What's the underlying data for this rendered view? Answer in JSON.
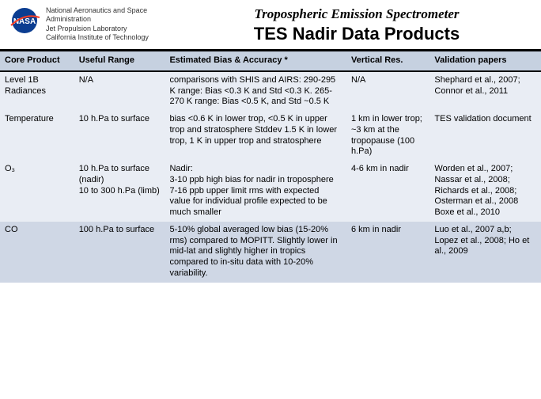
{
  "header": {
    "org_line1": "National Aeronautics and Space",
    "org_line2": "Administration",
    "org_line3": "Jet Propulsion Laboratory",
    "org_line4": "California Institute of Technology",
    "title_sub": "Tropospheric Emission Spectrometer",
    "title_main": "TES Nadir Data Products"
  },
  "table": {
    "columns": [
      "Core Product",
      "Useful Range",
      "Estimated Bias & Accuracy *",
      "Vertical Res.",
      "Validation papers"
    ],
    "rows": [
      {
        "product": "Level 1B Radiances",
        "range": "N/A",
        "bias": "comparisons with SHIS and AIRS: 290-295 K range: Bias <0.3 K and Std <0.3 K. 265-270 K range: Bias <0.5 K, and Std ~0.5 K",
        "vres": "N/A",
        "papers": "Shephard et al., 2007; Connor et al., 2011"
      },
      {
        "product": "Temperature",
        "range": "10 h.Pa to surface",
        "bias": "bias <0.6 K in lower trop, <0.5 K in upper trop and stratosphere Stddev 1.5 K in lower trop, 1 K in upper trop and stratosphere",
        "vres": "1 km in lower trop; ~3 km at the tropopause (100 h.Pa)",
        "papers": "TES validation document"
      },
      {
        "product": "O₃",
        "range": "10 h.Pa to surface (nadir)\n10 to 300 h.Pa (limb)",
        "bias": "Nadir:\n3-10 ppb high bias for nadir in troposphere\n7-16 ppb upper limit rms with expected value for individual profile expected to be much smaller",
        "vres": "4-6 km in nadir",
        "papers": "Worden et al., 2007; Nassar et al., 2008; Richards et al., 2008; Osterman et al., 2008\nBoxe et al., 2010"
      },
      {
        "product": "CO",
        "range": "100 h.Pa to surface",
        "bias": "5-10% global averaged low bias (15-20% rms) compared to MOPITT. Slightly lower in mid-lat and slightly higher in tropics compared to in-situ data with 10-20% variability.",
        "vres": "6 km in nadir",
        "papers": "Luo et al., 2007 a,b; Lopez et al., 2008; Ho et al., 2009"
      }
    ]
  },
  "colors": {
    "header_band": "#c6d1e0",
    "row_even": "#e9edf4",
    "row_odd": "#cfd7e5"
  }
}
